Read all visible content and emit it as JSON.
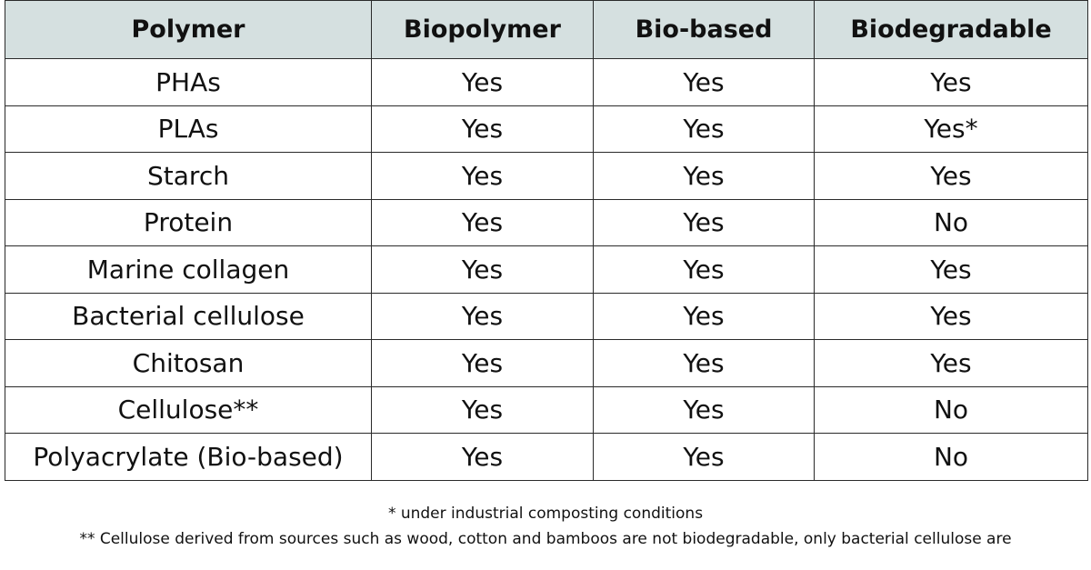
{
  "table": {
    "headers": [
      "Polymer",
      "Biopolymer",
      "Bio-based",
      "Biodegradable"
    ],
    "rows": [
      [
        "PHAs",
        "Yes",
        "Yes",
        "Yes"
      ],
      [
        "PLAs",
        "Yes",
        "Yes",
        "Yes*"
      ],
      [
        "Starch",
        "Yes",
        "Yes",
        "Yes"
      ],
      [
        "Protein",
        "Yes",
        "Yes",
        "No"
      ],
      [
        "Marine collagen",
        "Yes",
        "Yes",
        "Yes"
      ],
      [
        "Bacterial cellulose",
        "Yes",
        "Yes",
        "Yes"
      ],
      [
        "Chitosan",
        "Yes",
        "Yes",
        "Yes"
      ],
      [
        "Cellulose**",
        "Yes",
        "Yes",
        "No"
      ],
      [
        "Polyacrylate (Bio-based)",
        "Yes",
        "Yes",
        "No"
      ]
    ]
  },
  "footnotes": {
    "note1": "* under industrial composting conditions",
    "note2": "** Cellulose derived from sources such as wood, cotton and bamboos are not biodegradable, only bacterial cellulose are"
  },
  "colors": {
    "header_background": "#d5e0e0",
    "border": "#2a2a2a",
    "text": "#111111"
  }
}
